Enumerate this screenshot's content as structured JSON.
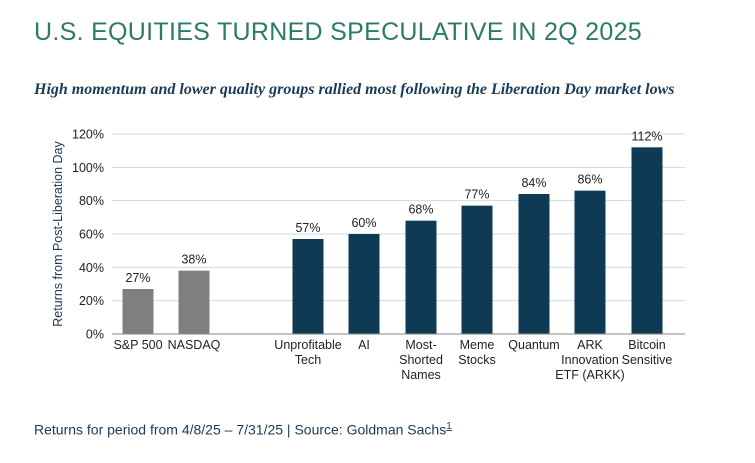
{
  "header": {
    "title": "U.S. EQUITIES TURNED SPECULATIVE IN 2Q 2025",
    "subtitle": "High momentum and lower quality groups rallied most following the Liberation Day market lows"
  },
  "footer": {
    "source_text": "Returns for period from 4/8/25 – 7/31/25 | Source: Goldman Sachs",
    "footnote_ref": "1"
  },
  "colors": {
    "title": "#2c7a6a",
    "text": "#1b3a55",
    "benchmark_bar": "#7f7f7f",
    "group_bar": "#0f3a54",
    "grid": "#c9dde0"
  },
  "chart_data": {
    "type": "bar",
    "ylabel": "Returns from Post-Liberation Day",
    "ylim": [
      0,
      120
    ],
    "yticks": [
      0,
      20,
      40,
      60,
      80,
      100,
      120
    ],
    "tick_suffix": "%",
    "grid": true,
    "bars": [
      {
        "label": [
          "S&P 500"
        ],
        "value": 27,
        "value_label": "27%",
        "kind": "benchmark"
      },
      {
        "label": [
          "NASDAQ"
        ],
        "value": 38,
        "value_label": "38%",
        "kind": "benchmark"
      },
      {
        "label": [
          "Unprofitable",
          "Tech"
        ],
        "value": 57,
        "value_label": "57%",
        "kind": "group"
      },
      {
        "label": [
          "AI"
        ],
        "value": 60,
        "value_label": "60%",
        "kind": "group"
      },
      {
        "label": [
          "Most-",
          "Shorted",
          "Names"
        ],
        "value": 68,
        "value_label": "68%",
        "kind": "group"
      },
      {
        "label": [
          "Meme",
          "Stocks"
        ],
        "value": 77,
        "value_label": "77%",
        "kind": "group"
      },
      {
        "label": [
          "Quantum"
        ],
        "value": 84,
        "value_label": "84%",
        "kind": "group"
      },
      {
        "label": [
          "ARK",
          "Innovation",
          "ETF (ARKK)"
        ],
        "value": 86,
        "value_label": "86%",
        "kind": "group"
      },
      {
        "label": [
          "Bitcoin",
          "Sensitive"
        ],
        "value": 112,
        "value_label": "112%",
        "kind": "group"
      }
    ]
  }
}
